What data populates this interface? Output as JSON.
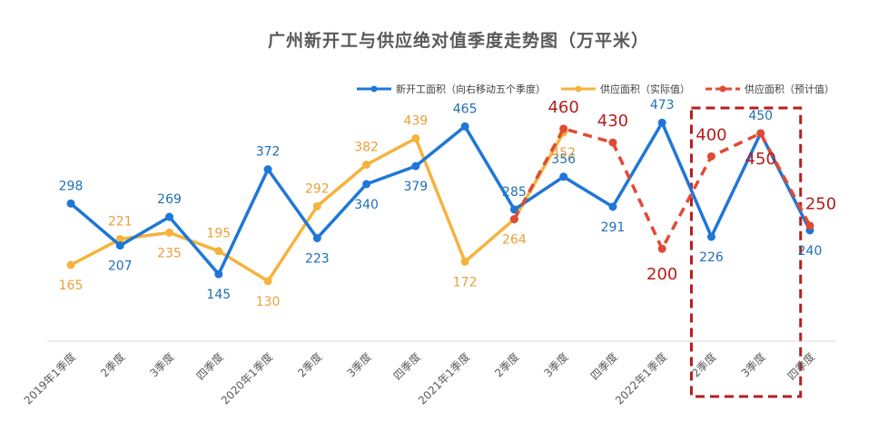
{
  "chart_data": {
    "type": "line",
    "title": "广州新开工与供应绝对值季度走势图（万平米）",
    "categories": [
      "2019年1季度",
      "2季度",
      "3季度",
      "四季度",
      "2020年1季度",
      "2季度",
      "3季度",
      "四季度",
      "2021年1季度",
      "2季度",
      "3季度",
      "四季度",
      "2022年1季度",
      "2季度",
      "3季度",
      "四季度"
    ],
    "series": [
      {
        "name": "新开工面积（向右移动五个季度）",
        "color": "#1f77d6",
        "style": "solid",
        "values": [
          298,
          207,
          269,
          145,
          372,
          223,
          340,
          379,
          465,
          285,
          356,
          291,
          473,
          226,
          450,
          240
        ]
      },
      {
        "name": "供应面积（实际值）",
        "color": "#f5b33c",
        "style": "solid",
        "values": [
          165,
          221,
          235,
          195,
          130,
          292,
          382,
          439,
          172,
          264,
          452,
          null,
          null,
          null,
          null,
          null
        ]
      },
      {
        "name": "供应面积（预计值）",
        "color": "#e24a33",
        "style": "dashed",
        "values": [
          null,
          null,
          null,
          null,
          null,
          null,
          null,
          null,
          null,
          264,
          460,
          430,
          200,
          400,
          450,
          250
        ]
      }
    ],
    "data_labels": {
      "新开工面积（向右移动五个季度）": [
        "298",
        "207",
        "269",
        "145",
        "372",
        "223",
        "340",
        "379",
        "465",
        "285",
        "356",
        "291",
        "473",
        "226",
        "450",
        "240"
      ],
      "供应面积（实际值）": [
        "165",
        "221",
        "235",
        "195",
        "130",
        "292",
        "382",
        "439",
        "172",
        "264",
        "452",
        "",
        "",
        "",
        "",
        ""
      ],
      "供应面积（预计值）": [
        "",
        "",
        "",
        "",
        "",
        "",
        "",
        "",
        "",
        "",
        "460",
        "430",
        "200",
        "400",
        "450",
        "250"
      ]
    },
    "ylim": [
      0,
      550
    ],
    "grid": false,
    "legend_position": "top-right",
    "highlight_box": {
      "from_category_index": 13,
      "to_category_index": 14,
      "color": "#b51e1e",
      "style": "dashed"
    }
  }
}
